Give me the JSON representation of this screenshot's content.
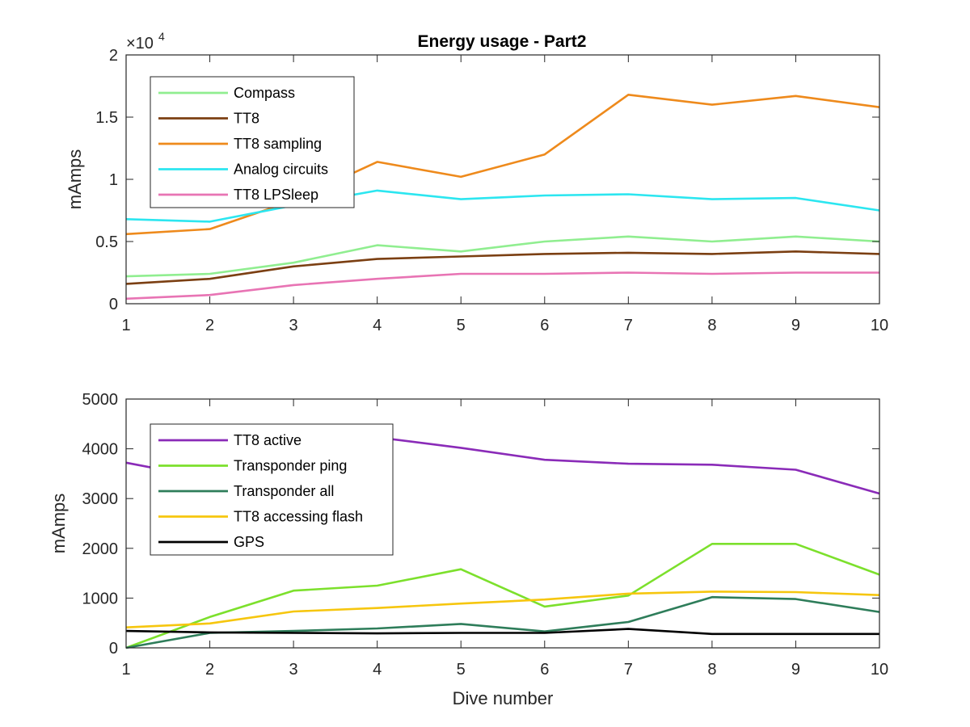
{
  "chart_data": [
    {
      "type": "line",
      "title": "Energy usage - Part2",
      "xlabel": "",
      "ylabel": "mAmps",
      "y_multiplier": "×10",
      "y_multiplier_exp": "4",
      "x": [
        1,
        2,
        3,
        4,
        5,
        6,
        7,
        8,
        9,
        10
      ],
      "xlim": [
        1,
        10
      ],
      "ylim": [
        0,
        20000
      ],
      "xticks": [
        1,
        2,
        3,
        4,
        5,
        6,
        7,
        8,
        9,
        10
      ],
      "yticks": [
        0,
        5000,
        10000,
        15000,
        20000
      ],
      "ytick_labels": [
        "0",
        "0.5",
        "1",
        "1.5",
        "2"
      ],
      "grid": false,
      "legend_position": "top-left",
      "series": [
        {
          "name": "Compass",
          "color": "#90EE90",
          "values": [
            2200,
            2400,
            3300,
            4700,
            4200,
            5000,
            5400,
            5000,
            5400,
            5000
          ]
        },
        {
          "name": "TT8",
          "color": "#7B3F12",
          "values": [
            1600,
            2000,
            3000,
            3600,
            3800,
            4000,
            4100,
            4000,
            4200,
            4000
          ]
        },
        {
          "name": "TT8 sampling",
          "color": "#EE8A1C",
          "values": [
            5600,
            6000,
            8300,
            11400,
            10200,
            12000,
            16800,
            16000,
            16700,
            15800
          ]
        },
        {
          "name": "Analog circuits",
          "color": "#2CE6F0",
          "values": [
            6800,
            6600,
            7900,
            9100,
            8400,
            8700,
            8800,
            8400,
            8500,
            7500
          ]
        },
        {
          "name": "TT8 LPSleep",
          "color": "#E874B4",
          "values": [
            400,
            700,
            1500,
            2000,
            2400,
            2400,
            2500,
            2400,
            2500,
            2500
          ]
        }
      ]
    },
    {
      "type": "line",
      "title": "",
      "xlabel": "Dive number",
      "ylabel": "mAmps",
      "x": [
        1,
        2,
        3,
        4,
        5,
        6,
        7,
        8,
        9,
        10
      ],
      "xlim": [
        1,
        10
      ],
      "ylim": [
        0,
        5000
      ],
      "xticks": [
        1,
        2,
        3,
        4,
        5,
        6,
        7,
        8,
        9,
        10
      ],
      "yticks": [
        0,
        1000,
        2000,
        3000,
        4000,
        5000
      ],
      "ytick_labels": [
        "0",
        "1000",
        "2000",
        "3000",
        "4000",
        "5000"
      ],
      "grid": false,
      "legend_position": "top-left",
      "series": [
        {
          "name": "TT8 active",
          "color": "#8A2BB8",
          "values": [
            3720,
            3400,
            4100,
            4230,
            4020,
            3780,
            3700,
            3680,
            3580,
            3100
          ]
        },
        {
          "name": "Transponder ping",
          "color": "#7CE02C",
          "values": [
            0,
            620,
            1150,
            1250,
            1580,
            830,
            1050,
            2090,
            2090,
            1470
          ]
        },
        {
          "name": "Transponder all",
          "color": "#2E7D5A",
          "values": [
            0,
            300,
            340,
            390,
            480,
            330,
            520,
            1020,
            980,
            720
          ]
        },
        {
          "name": "TT8 accessing flash",
          "color": "#F6C60E",
          "values": [
            410,
            490,
            730,
            800,
            890,
            970,
            1090,
            1130,
            1120,
            1060
          ]
        },
        {
          "name": "GPS",
          "color": "#000000",
          "values": [
            340,
            310,
            300,
            290,
            300,
            300,
            380,
            280,
            280,
            280
          ]
        }
      ]
    }
  ]
}
